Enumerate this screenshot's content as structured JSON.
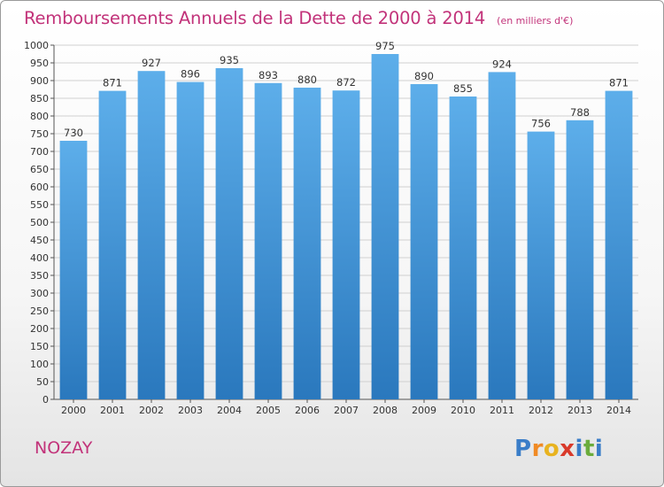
{
  "title": "Remboursements Annuels de la Dette de 2000 à 2014",
  "subtitle": "(en milliers d'€)",
  "commune": "NOZAY",
  "logo": {
    "text": "Proxiti",
    "letters": [
      {
        "ch": "P",
        "color": "#3a7dc8"
      },
      {
        "ch": "r",
        "color": "#f08a24"
      },
      {
        "ch": "o",
        "color": "#e8b320"
      },
      {
        "ch": "x",
        "color": "#d93a2b"
      },
      {
        "ch": "i",
        "color": "#3a7dc8"
      },
      {
        "ch": "t",
        "color": "#6aac3c"
      },
      {
        "ch": "i",
        "color": "#3a7dc8"
      }
    ]
  },
  "colors": {
    "bar_top": "#5daeea",
    "bar_bottom": "#2a78bd",
    "grid": "#d0d0d0",
    "axis": "#555555",
    "text": "#333333",
    "accent": "#c2337a"
  },
  "chart_data": {
    "type": "bar",
    "title": "Remboursements Annuels de la Dette de 2000 à 2014",
    "subtitle": "(en milliers d'€)",
    "categories": [
      "2000",
      "2001",
      "2002",
      "2003",
      "2004",
      "2005",
      "2006",
      "2007",
      "2008",
      "2009",
      "2010",
      "2011",
      "2012",
      "2013",
      "2014"
    ],
    "values": [
      730,
      871,
      927,
      896,
      935,
      893,
      880,
      872,
      975,
      890,
      855,
      924,
      756,
      788,
      871
    ],
    "ylim": [
      0,
      1000
    ],
    "ytick_step": 50,
    "grid": true,
    "data_labels": true,
    "xlabel": "",
    "ylabel": ""
  }
}
